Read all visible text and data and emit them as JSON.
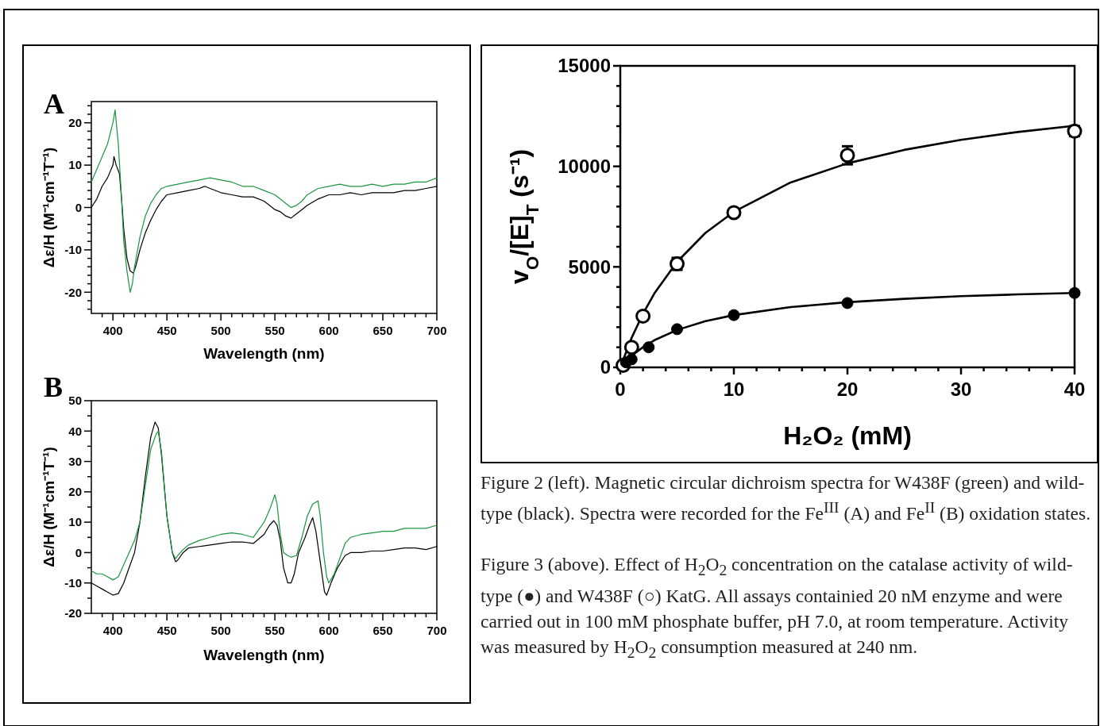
{
  "chart_data": [
    {
      "type": "line",
      "title": "A",
      "xlabel": "Wavelength (nm)",
      "ylabel": "Δε/H (M⁻¹cm⁻¹T⁻¹)",
      "xlim": [
        380,
        700
      ],
      "ylim": [
        -25,
        25
      ],
      "xticks": [
        {
          "value": 390,
          "label": null
        },
        400,
        {
          "value": 410,
          "label": null
        },
        {
          "value": 420,
          "label": null
        },
        {
          "value": 430,
          "label": null
        },
        {
          "value": 440,
          "label": null
        },
        450,
        {
          "value": 460,
          "label": null
        },
        {
          "value": 470,
          "label": null
        },
        {
          "value": 480,
          "label": null
        },
        {
          "value": 490,
          "label": null
        },
        500,
        {
          "value": 510,
          "label": null
        },
        {
          "value": 520,
          "label": null
        },
        {
          "value": 530,
          "label": null
        },
        {
          "value": 540,
          "label": null
        },
        550,
        {
          "value": 560,
          "label": null
        },
        {
          "value": 570,
          "label": null
        },
        {
          "value": 580,
          "label": null
        },
        {
          "value": 590,
          "label": null
        },
        600,
        {
          "value": 610,
          "label": null
        },
        {
          "value": 620,
          "label": null
        },
        {
          "value": 630,
          "label": null
        },
        {
          "value": 640,
          "label": null
        },
        650,
        {
          "value": 660,
          "label": null
        },
        {
          "value": 670,
          "label": null
        },
        {
          "value": 680,
          "label": null
        },
        {
          "value": 690,
          "label": null
        },
        700
      ],
      "yticks": [
        {
          "value": -24,
          "label": null
        },
        {
          "value": -22,
          "label": null
        },
        -20,
        {
          "value": -18,
          "label": null
        },
        {
          "value": -16,
          "label": null
        },
        {
          "value": -14,
          "label": null
        },
        {
          "value": -12,
          "label": null
        },
        -10,
        {
          "value": -8,
          "label": null
        },
        {
          "value": -6,
          "label": null
        },
        {
          "value": -4,
          "label": null
        },
        {
          "value": -2,
          "label": null
        },
        0,
        {
          "value": 2,
          "label": null
        },
        {
          "value": 4,
          "label": null
        },
        {
          "value": 6,
          "label": null
        },
        {
          "value": 8,
          "label": null
        },
        10,
        {
          "value": 12,
          "label": null
        },
        {
          "value": 14,
          "label": null
        },
        {
          "value": 16,
          "label": null
        },
        {
          "value": 18,
          "label": null
        },
        20,
        {
          "value": 22,
          "label": null
        },
        {
          "value": 24,
          "label": null
        }
      ],
      "series": [
        {
          "color": "#000000",
          "x": [
            380,
            385,
            390,
            395,
            400,
            401,
            403,
            406,
            408,
            410,
            413,
            416,
            419,
            421,
            425,
            430,
            435,
            440,
            445,
            450,
            460,
            470,
            480,
            485,
            490,
            500,
            510,
            520,
            530,
            540,
            545,
            550,
            555,
            560,
            565,
            570,
            575,
            580,
            590,
            600,
            610,
            620,
            630,
            640,
            650,
            660,
            670,
            680,
            690,
            700
          ],
          "values": [
            0,
            2,
            5,
            7,
            10,
            12,
            10,
            8,
            2,
            -5,
            -12,
            -15,
            -15.5,
            -14,
            -10,
            -6,
            -3,
            -0.5,
            1.5,
            3,
            3.5,
            4,
            4.5,
            5,
            4.5,
            3.5,
            3,
            2.5,
            2.5,
            1.5,
            0.5,
            -0.5,
            -1,
            -2,
            -2.5,
            -1.5,
            -0.5,
            0.5,
            2,
            3,
            3,
            3.5,
            3,
            3.5,
            3.5,
            3.5,
            4,
            4,
            4.5,
            5
          ]
        },
        {
          "color": "#1a9641",
          "x": [
            380,
            385,
            390,
            395,
            400,
            402,
            405,
            408,
            410,
            413,
            416,
            418,
            420,
            425,
            430,
            435,
            440,
            445,
            450,
            460,
            470,
            480,
            490,
            500,
            510,
            520,
            530,
            540,
            550,
            555,
            560,
            565,
            570,
            575,
            580,
            590,
            600,
            610,
            620,
            630,
            640,
            650,
            660,
            670,
            680,
            690,
            700
          ],
          "values": [
            6,
            9,
            12,
            15,
            20,
            23,
            15,
            2,
            -8,
            -15,
            -20,
            -18,
            -14,
            -7,
            -2,
            1,
            3,
            4.5,
            5,
            5.5,
            6,
            6.5,
            7,
            6.5,
            6,
            5,
            5,
            4,
            3,
            2,
            1,
            0,
            0.5,
            1.5,
            3,
            4.5,
            5,
            5.5,
            5,
            5,
            5.5,
            5,
            5.5,
            5.5,
            6,
            6,
            7
          ]
        }
      ]
    },
    {
      "type": "line",
      "title": "B",
      "xlabel": "Wavelength (nm)",
      "ylabel": "Δε/H (M⁻¹cm⁻¹T⁻¹)",
      "xlim": [
        380,
        700
      ],
      "ylim": [
        -20,
        50
      ],
      "xticks": [
        {
          "value": 390,
          "label": null
        },
        400,
        {
          "value": 410,
          "label": null
        },
        {
          "value": 420,
          "label": null
        },
        {
          "value": 430,
          "label": null
        },
        {
          "value": 440,
          "label": null
        },
        450,
        {
          "value": 460,
          "label": null
        },
        {
          "value": 470,
          "label": null
        },
        {
          "value": 480,
          "label": null
        },
        {
          "value": 490,
          "label": null
        },
        500,
        {
          "value": 510,
          "label": null
        },
        {
          "value": 520,
          "label": null
        },
        {
          "value": 530,
          "label": null
        },
        {
          "value": 540,
          "label": null
        },
        550,
        {
          "value": 560,
          "label": null
        },
        {
          "value": 570,
          "label": null
        },
        {
          "value": 580,
          "label": null
        },
        {
          "value": 590,
          "label": null
        },
        600,
        {
          "value": 610,
          "label": null
        },
        {
          "value": 620,
          "label": null
        },
        {
          "value": 630,
          "label": null
        },
        {
          "value": 640,
          "label": null
        },
        650,
        {
          "value": 660,
          "label": null
        },
        {
          "value": 670,
          "label": null
        },
        {
          "value": 680,
          "label": null
        },
        {
          "value": 690,
          "label": null
        },
        700
      ],
      "yticks": [
        -20,
        {
          "value": -15,
          "label": null
        },
        -10,
        {
          "value": -5,
          "label": null
        },
        0,
        {
          "value": 5,
          "label": null
        },
        10,
        {
          "value": 15,
          "label": null
        },
        20,
        {
          "value": 25,
          "label": null
        },
        30,
        {
          "value": 35,
          "label": null
        },
        40,
        {
          "value": 45,
          "label": null
        },
        50
      ],
      "series": [
        {
          "color": "#000000",
          "x": [
            380,
            385,
            390,
            395,
            400,
            405,
            410,
            415,
            420,
            425,
            430,
            435,
            439,
            442,
            445,
            450,
            455,
            458,
            460,
            465,
            470,
            480,
            490,
            500,
            510,
            520,
            530,
            540,
            545,
            549,
            552,
            555,
            558,
            562,
            565,
            568,
            572,
            578,
            582,
            585,
            588,
            592,
            596,
            598,
            602,
            608,
            615,
            620,
            630,
            640,
            650,
            660,
            670,
            680,
            690,
            700
          ],
          "values": [
            -10,
            -11,
            -12,
            -13,
            -14,
            -13.5,
            -10,
            -5,
            0,
            10,
            25,
            38,
            43,
            41,
            32,
            12,
            0,
            -3,
            -2.5,
            0,
            1.5,
            2,
            2.5,
            3,
            3.5,
            3.5,
            3,
            6,
            9,
            10.5,
            9,
            4,
            -5,
            -10,
            -10,
            -7,
            0,
            5,
            9,
            11.5,
            7,
            -3,
            -13,
            -14,
            -10,
            -5,
            -1,
            0,
            0,
            0.5,
            0.5,
            1,
            1.5,
            1.5,
            1,
            2
          ]
        },
        {
          "color": "#1a9641",
          "x": [
            380,
            385,
            390,
            395,
            400,
            405,
            410,
            415,
            420,
            425,
            430,
            435,
            440,
            442,
            445,
            450,
            455,
            458,
            460,
            465,
            470,
            480,
            490,
            500,
            510,
            520,
            530,
            540,
            545,
            550,
            552,
            555,
            558,
            562,
            565,
            570,
            575,
            580,
            585,
            590,
            592,
            595,
            598,
            600,
            605,
            610,
            615,
            620,
            630,
            640,
            650,
            660,
            670,
            680,
            690,
            700
          ],
          "values": [
            -6,
            -7,
            -7,
            -8,
            -9,
            -8,
            -4,
            0,
            4,
            10,
            22,
            34,
            39,
            40,
            33,
            12,
            0,
            -2,
            -1,
            1,
            2.5,
            4,
            5,
            6,
            6.5,
            6,
            5,
            10,
            14,
            19,
            16,
            6,
            0,
            -1,
            -1.5,
            -1,
            5,
            12,
            16,
            17,
            12,
            0,
            -8,
            -10,
            -7,
            -2,
            3,
            5,
            6,
            6.5,
            7,
            7,
            8,
            8,
            8,
            9
          ]
        }
      ]
    },
    {
      "type": "scatter",
      "xlabel": "H₂O₂ (mM)",
      "ylabel": "v$_{O}$/[E]$_{T}$ (s⁻¹)",
      "xlim": [
        0,
        40
      ],
      "ylim": [
        0,
        15000
      ],
      "xticks": [
        0,
        {
          "value": 2,
          "label": null
        },
        {
          "value": 4,
          "label": null
        },
        {
          "value": 6,
          "label": null
        },
        {
          "value": 8,
          "label": null
        },
        10,
        {
          "value": 12,
          "label": null
        },
        {
          "value": 14,
          "label": null
        },
        {
          "value": 16,
          "label": null
        },
        {
          "value": 18,
          "label": null
        },
        20,
        {
          "value": 22,
          "label": null
        },
        {
          "value": 24,
          "label": null
        },
        {
          "value": 26,
          "label": null
        },
        {
          "value": 28,
          "label": null
        },
        30,
        {
          "value": 32,
          "label": null
        },
        {
          "value": 34,
          "label": null
        },
        {
          "value": 36,
          "label": null
        },
        {
          "value": 38,
          "label": null
        },
        40
      ],
      "yticks": [
        0,
        {
          "value": 1000,
          "label": null
        },
        {
          "value": 2000,
          "label": null
        },
        {
          "value": 3000,
          "label": null
        },
        {
          "value": 4000,
          "label": null
        },
        5000,
        {
          "value": 6000,
          "label": null
        },
        {
          "value": 7000,
          "label": null
        },
        {
          "value": 8000,
          "label": null
        },
        {
          "value": 9000,
          "label": null
        },
        10000,
        {
          "value": 11000,
          "label": null
        },
        {
          "value": 12000,
          "label": null
        },
        {
          "value": 13000,
          "label": null
        },
        {
          "value": 14000,
          "label": null
        },
        15000
      ],
      "series": [
        {
          "type": "line",
          "color": "#000000",
          "x": [
            0,
            1,
            2,
            3,
            5,
            7.5,
            10,
            15,
            20,
            25,
            30,
            35,
            40
          ],
          "values": [
            0,
            1470,
            2670,
            3680,
            5250,
            6690,
            7740,
            9200,
            10150,
            10820,
            11320,
            11710,
            12020
          ]
        },
        {
          "type": "line",
          "color": "#000000",
          "x": [
            0,
            1,
            2,
            3,
            5,
            7.5,
            10,
            15,
            20,
            25,
            30,
            35,
            40
          ],
          "values": [
            0,
            570,
            1010,
            1350,
            1860,
            2300,
            2600,
            3000,
            3240,
            3410,
            3540,
            3630,
            3700
          ]
        },
        {
          "marker": "circle",
          "color": "#ffffff",
          "x": [
            0.25,
            1,
            2,
            5,
            10,
            20,
            40
          ],
          "values": [
            100,
            1000,
            2550,
            5150,
            7700,
            10550,
            11750
          ],
          "errors": [
            null,
            null,
            null,
            300,
            null,
            450,
            250
          ]
        },
        {
          "marker": "circle",
          "color": "#000000",
          "x": [
            0.5,
            1,
            2.5,
            5,
            10,
            20,
            40
          ],
          "values": [
            250,
            400,
            1000,
            1900,
            2600,
            3200,
            3700
          ]
        }
      ],
      "annotations": [
        "Figure 2 (left). Magnetic circular dichroism spectra for W438F (green) and wild-type (black). Spectra were recorded for the Fe$^{III}$ (A) and Fe$^{II}$ (B) oxidation states.",
        "Figure 3 (above). Effect of H$_{2}$O$_{2}$ concentration on the catalase activity of wild-type (●) and W438F (○) KatG. All assays containied 20 nM enzyme and were carried out in 100 mM phosphate buffer, pH 7.0, at room temperature. Activity was measured by H$_{2}$O$_{2}$ consumption measured at 240 nm."
      ]
    }
  ]
}
